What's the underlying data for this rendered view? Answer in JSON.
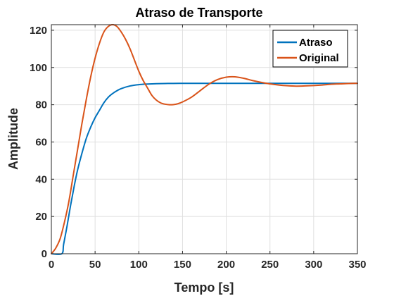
{
  "chart_data": {
    "type": "line",
    "title": "Atraso de Transporte",
    "xlabel": "Tempo [s]",
    "ylabel": "Amplitude",
    "xlim": [
      0,
      350
    ],
    "ylim": [
      0,
      123
    ],
    "xticks": [
      0,
      50,
      100,
      150,
      200,
      250,
      300,
      350
    ],
    "yticks": [
      0,
      20,
      40,
      60,
      80,
      100,
      120
    ],
    "grid": true,
    "legend_position": "top-right",
    "series": [
      {
        "name": "Atraso",
        "color": "#0072BD",
        "x": [
          0,
          12,
          14,
          18,
          22,
          26,
          30,
          35,
          40,
          45,
          50,
          55,
          60,
          65,
          70,
          75,
          80,
          90,
          100,
          110,
          120,
          130,
          150,
          200,
          250,
          300,
          350
        ],
        "y": [
          0,
          0,
          5,
          15,
          26,
          36,
          45,
          54,
          62,
          68,
          73,
          77,
          81,
          84,
          86,
          87.5,
          88.7,
          90.1,
          90.8,
          91.1,
          91.3,
          91.4,
          91.5,
          91.5,
          91.5,
          91.5,
          91.5
        ]
      },
      {
        "name": "Original",
        "color": "#D95319",
        "x": [
          0,
          5,
          10,
          15,
          20,
          25,
          30,
          35,
          40,
          45,
          50,
          55,
          60,
          65,
          70,
          75,
          80,
          85,
          90,
          95,
          100,
          105,
          110,
          115,
          120,
          125,
          130,
          135,
          140,
          145,
          150,
          160,
          170,
          180,
          190,
          200,
          210,
          220,
          230,
          240,
          250,
          260,
          270,
          280,
          290,
          300,
          310,
          320,
          330,
          340,
          350
        ],
        "y": [
          0,
          3,
          8,
          17,
          28,
          42,
          56,
          70,
          83,
          95,
          105,
          113,
          119,
          122,
          123,
          122,
          119,
          115,
          110,
          104,
          98,
          93,
          89,
          85,
          82.5,
          81,
          80.3,
          80,
          80.1,
          80.6,
          81.5,
          84,
          87.5,
          91,
          93.5,
          94.8,
          95,
          94.2,
          93,
          92,
          91.2,
          90.6,
          90.2,
          90,
          90.1,
          90.3,
          90.6,
          91,
          91.2,
          91.4,
          91.5
        ]
      }
    ]
  }
}
